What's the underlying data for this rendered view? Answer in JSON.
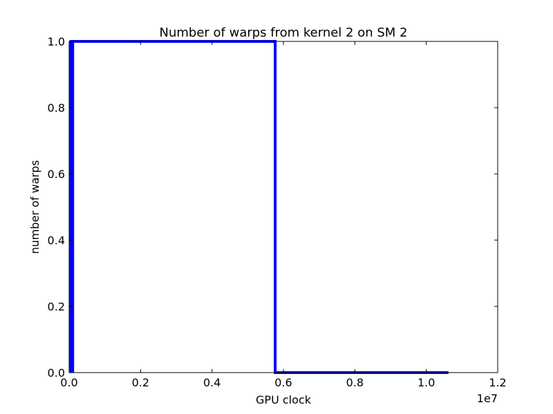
{
  "chart_data": {
    "type": "line",
    "title": "Number of warps from kernel 2 on SM 2",
    "xlabel": "GPU clock",
    "ylabel": "number of warps",
    "x_offset_label": "1e7",
    "xlim": [
      0,
      12000000
    ],
    "ylim": [
      0,
      1.0
    ],
    "x_ticks": [
      0,
      2000000,
      4000000,
      6000000,
      8000000,
      10000000,
      12000000
    ],
    "x_tick_labels": [
      "0.0",
      "0.2",
      "0.4",
      "0.6",
      "0.8",
      "1.0",
      "1.2"
    ],
    "y_ticks": [
      0,
      0.2,
      0.4,
      0.6,
      0.8,
      1.0
    ],
    "y_tick_labels": [
      "0.0",
      "0.2",
      "0.4",
      "0.6",
      "0.8",
      "1.0"
    ],
    "grid": false,
    "series": [
      {
        "color": "#0000ff",
        "points": [
          {
            "x": 50000,
            "y": 0
          },
          {
            "x": 50000,
            "y": 1
          },
          {
            "x": 100000,
            "y": 1
          },
          {
            "x": 100000,
            "y": 0
          },
          {
            "x": 100000,
            "y": 1
          },
          {
            "x": 5770000,
            "y": 1
          },
          {
            "x": 5770000,
            "y": 0
          },
          {
            "x": 10620000,
            "y": 0
          }
        ]
      }
    ]
  }
}
